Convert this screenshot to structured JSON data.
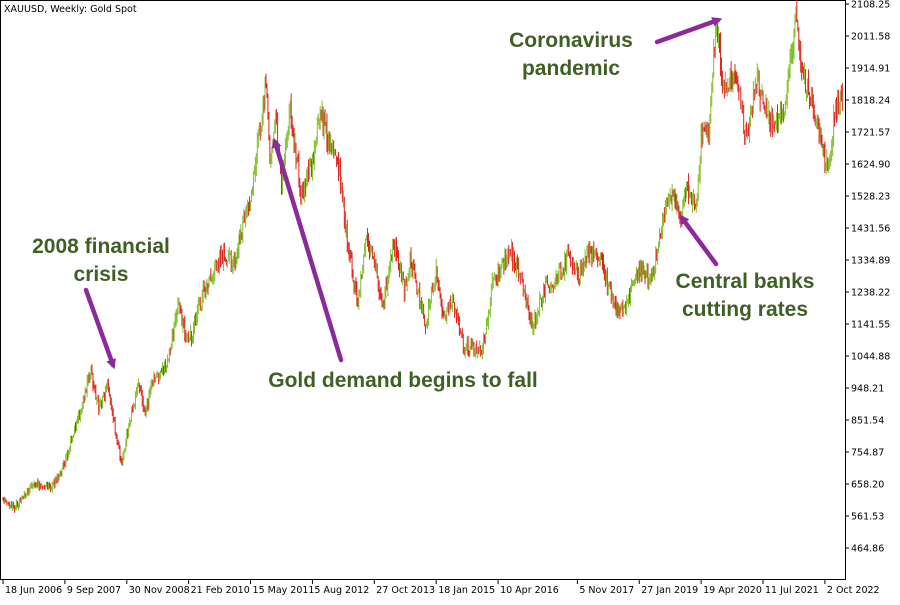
{
  "chart_data": {
    "type": "candlestick",
    "symbol_label": "XAUUSD, Weekly:  Gold Spot",
    "y_ticks": [
      "2108.25",
      "2011.58",
      "1914.91",
      "1818.24",
      "1721.57",
      "1624.90",
      "1528.23",
      "1431.56",
      "1334.89",
      "1238.22",
      "1141.55",
      "1044.88",
      "948.21",
      "851.54",
      "754.87",
      "658.20",
      "561.53",
      "464.86"
    ],
    "x_ticks": [
      "18 Jun 2006",
      "9 Sep 2007",
      "30 Nov 2008",
      "21 Feb 2010",
      "15 May 2011",
      "5 Aug 2012",
      "27 Oct 2013",
      "18 Jan 2015",
      "10 Apr 2016",
      "5 Nov 2017",
      "27 Jan 2019",
      "19 Apr 2020",
      "11 Jul 2021",
      "2 Oct 2022"
    ],
    "ylim": [
      420,
      2120
    ],
    "x_range": [
      "2006-06-18",
      "2023-02-10"
    ],
    "price_path": [
      [
        "2006-06-18",
        610
      ],
      [
        "2006-09-10",
        590
      ],
      [
        "2006-12-01",
        630
      ],
      [
        "2007-03-01",
        660
      ],
      [
        "2007-06-01",
        650
      ],
      [
        "2007-09-09",
        720
      ],
      [
        "2007-11-15",
        820
      ],
      [
        "2008-01-15",
        900
      ],
      [
        "2008-03-15",
        1005
      ],
      [
        "2008-05-15",
        880
      ],
      [
        "2008-07-15",
        960
      ],
      [
        "2008-09-15",
        800
      ],
      [
        "2008-10-25",
        715
      ],
      [
        "2008-11-30",
        800
      ],
      [
        "2009-02-20",
        960
      ],
      [
        "2009-04-15",
        880
      ],
      [
        "2009-06-01",
        960
      ],
      [
        "2009-09-15",
        1010
      ],
      [
        "2009-12-01",
        1200
      ],
      [
        "2010-02-21",
        1080
      ],
      [
        "2010-06-15",
        1250
      ],
      [
        "2010-10-15",
        1350
      ],
      [
        "2011-01-15",
        1330
      ],
      [
        "2011-05-15",
        1520
      ],
      [
        "2011-08-15",
        1800
      ],
      [
        "2011-09-05",
        1900
      ],
      [
        "2011-10-01",
        1620
      ],
      [
        "2011-11-15",
        1760
      ],
      [
        "2011-12-25",
        1560
      ],
      [
        "2012-02-25",
        1780
      ],
      [
        "2012-05-15",
        1540
      ],
      [
        "2012-08-05",
        1620
      ],
      [
        "2012-10-05",
        1790
      ],
      [
        "2012-12-20",
        1660
      ],
      [
        "2013-02-20",
        1600
      ],
      [
        "2013-04-15",
        1390
      ],
      [
        "2013-06-28",
        1200
      ],
      [
        "2013-08-28",
        1410
      ],
      [
        "2013-10-27",
        1320
      ],
      [
        "2013-12-31",
        1200
      ],
      [
        "2014-03-15",
        1390
      ],
      [
        "2014-06-01",
        1250
      ],
      [
        "2014-07-15",
        1330
      ],
      [
        "2014-11-05",
        1140
      ],
      [
        "2015-01-18",
        1300
      ],
      [
        "2015-03-15",
        1150
      ],
      [
        "2015-05-15",
        1220
      ],
      [
        "2015-08-01",
        1080
      ],
      [
        "2015-12-15",
        1060
      ],
      [
        "2016-03-01",
        1260
      ],
      [
        "2016-07-06",
        1370
      ],
      [
        "2016-10-15",
        1250
      ],
      [
        "2016-12-15",
        1130
      ],
      [
        "2017-03-15",
        1250
      ],
      [
        "2017-06-01",
        1270
      ],
      [
        "2017-09-08",
        1350
      ],
      [
        "2017-11-05",
        1280
      ],
      [
        "2018-01-25",
        1360
      ],
      [
        "2018-04-15",
        1340
      ],
      [
        "2018-08-15",
        1170
      ],
      [
        "2018-11-15",
        1220
      ],
      [
        "2019-01-27",
        1300
      ],
      [
        "2019-05-01",
        1280
      ],
      [
        "2019-06-25",
        1420
      ],
      [
        "2019-09-04",
        1550
      ],
      [
        "2019-11-15",
        1460
      ],
      [
        "2020-01-15",
        1560
      ],
      [
        "2020-03-19",
        1480
      ],
      [
        "2020-04-19",
        1700
      ],
      [
        "2020-06-15",
        1740
      ],
      [
        "2020-08-07",
        2070
      ],
      [
        "2020-09-25",
        1850
      ],
      [
        "2020-11-15",
        1870
      ],
      [
        "2021-01-15",
        1860
      ],
      [
        "2021-03-08",
        1690
      ],
      [
        "2021-05-31",
        1900
      ],
      [
        "2021-07-11",
        1800
      ],
      [
        "2021-09-30",
        1740
      ],
      [
        "2021-12-15",
        1800
      ],
      [
        "2022-03-08",
        2060
      ],
      [
        "2022-04-15",
        1930
      ],
      [
        "2022-06-15",
        1820
      ],
      [
        "2022-08-01",
        1770
      ],
      [
        "2022-09-28",
        1630
      ],
      [
        "2022-11-03",
        1630
      ],
      [
        "2022-12-15",
        1800
      ],
      [
        "2023-02-10",
        1830
      ]
    ],
    "colors": {
      "up": "#7fbf2a",
      "down": "#e0201a",
      "annotation_text": "#3f5f24",
      "arrow": "#8b2a9b"
    },
    "annotations": [
      {
        "lines": [
          "2008 financial",
          "crisis"
        ],
        "date": "2008-03-15",
        "price": 1005
      },
      {
        "lines": [
          "Gold demand begins to fall"
        ],
        "date": "2011-09-01",
        "price": 1640
      },
      {
        "lines": [
          "Coronavirus",
          "pandemic"
        ],
        "date": "2020-08-07",
        "price": 2065
      },
      {
        "lines": [
          "Central banks",
          "cutting rates"
        ],
        "date": "2019-06-15",
        "price": 1455
      }
    ]
  }
}
